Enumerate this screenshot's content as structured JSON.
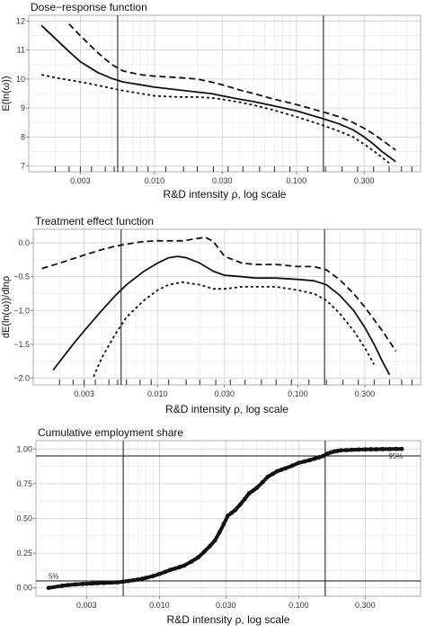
{
  "chart_data": [
    {
      "type": "line",
      "title": "Dose−response function",
      "xlabel": "R&D intensity ρ, log scale",
      "ylabel": "E(ln(ω))",
      "xscale": "log",
      "xlim": [
        0.0013,
        0.75
      ],
      "ylim": [
        6.8,
        12.2
      ],
      "xticks": [
        0.003,
        0.01,
        0.03,
        0.1,
        0.3
      ],
      "xtick_labels": [
        "0.003",
        "0.010",
        "0.030",
        "0.100",
        "0.300"
      ],
      "yticks": [
        7,
        8,
        9,
        10,
        11,
        12
      ],
      "ytick_labels": [
        "7",
        "8",
        "9",
        "10",
        "11",
        "12"
      ],
      "vlines": [
        0.0055,
        0.155
      ],
      "rug": true,
      "series": [
        {
          "style": "solid",
          "x": [
            0.0016,
            0.002,
            0.0025,
            0.003,
            0.004,
            0.005,
            0.006,
            0.008,
            0.01,
            0.015,
            0.02,
            0.025,
            0.03,
            0.04,
            0.05,
            0.07,
            0.1,
            0.15,
            0.2,
            0.25,
            0.3,
            0.35,
            0.4,
            0.5
          ],
          "y": [
            11.85,
            11.4,
            10.95,
            10.6,
            10.22,
            10.02,
            9.9,
            9.8,
            9.72,
            9.62,
            9.55,
            9.5,
            9.42,
            9.3,
            9.22,
            9.07,
            8.9,
            8.65,
            8.45,
            8.25,
            8.0,
            7.75,
            7.5,
            7.15
          ]
        },
        {
          "style": "dashed",
          "x": [
            0.0025,
            0.003,
            0.004,
            0.005,
            0.006,
            0.008,
            0.01,
            0.015,
            0.02,
            0.025,
            0.03,
            0.04,
            0.05,
            0.07,
            0.1,
            0.15,
            0.2,
            0.25,
            0.3,
            0.35,
            0.4,
            0.5
          ],
          "y": [
            11.9,
            11.5,
            10.9,
            10.5,
            10.28,
            10.15,
            10.1,
            10.05,
            10.0,
            9.9,
            9.8,
            9.62,
            9.5,
            9.3,
            9.12,
            8.88,
            8.7,
            8.5,
            8.3,
            8.1,
            7.9,
            7.55
          ]
        },
        {
          "style": "dotted",
          "x": [
            0.0016,
            0.002,
            0.003,
            0.004,
            0.005,
            0.006,
            0.008,
            0.01,
            0.015,
            0.02,
            0.025,
            0.03,
            0.04,
            0.05,
            0.07,
            0.1,
            0.15,
            0.2,
            0.25,
            0.3,
            0.35,
            0.4,
            0.45
          ],
          "y": [
            10.15,
            10.05,
            9.9,
            9.78,
            9.68,
            9.6,
            9.5,
            9.42,
            9.38,
            9.38,
            9.35,
            9.3,
            9.2,
            9.1,
            8.92,
            8.7,
            8.42,
            8.2,
            8.0,
            7.75,
            7.52,
            7.3,
            7.1
          ]
        }
      ]
    },
    {
      "type": "line",
      "title": "Treatment effect function",
      "xlabel": "R&D intensity ρ, log scale",
      "ylabel": "dE(ln(ω))/dlnρ",
      "xscale": "log",
      "xlim": [
        0.0013,
        0.75
      ],
      "ylim": [
        -2.1,
        0.2
      ],
      "xticks": [
        0.003,
        0.01,
        0.03,
        0.1,
        0.3
      ],
      "xtick_labels": [
        "0.003",
        "0.010",
        "0.030",
        "0.100",
        "0.300"
      ],
      "yticks": [
        0.0,
        -0.5,
        -1.0,
        -1.5,
        -2.0
      ],
      "ytick_labels": [
        "0.0",
        "−0.5",
        "−1.0",
        "−1.5",
        "−2.0"
      ],
      "vlines": [
        0.0055,
        0.155
      ],
      "rug": true,
      "series": [
        {
          "style": "solid",
          "x": [
            0.0018,
            0.0025,
            0.003,
            0.004,
            0.005,
            0.006,
            0.008,
            0.01,
            0.012,
            0.014,
            0.016,
            0.02,
            0.025,
            0.03,
            0.04,
            0.05,
            0.07,
            0.1,
            0.13,
            0.16,
            0.2,
            0.25,
            0.3,
            0.35,
            0.4,
            0.45
          ],
          "y": [
            -1.88,
            -1.5,
            -1.3,
            -1.0,
            -0.78,
            -0.62,
            -0.42,
            -0.3,
            -0.22,
            -0.2,
            -0.22,
            -0.3,
            -0.42,
            -0.48,
            -0.5,
            -0.52,
            -0.52,
            -0.54,
            -0.56,
            -0.62,
            -0.78,
            -1.0,
            -1.25,
            -1.5,
            -1.75,
            -1.95
          ]
        },
        {
          "style": "dashed",
          "x": [
            0.0015,
            0.002,
            0.003,
            0.004,
            0.005,
            0.006,
            0.008,
            0.01,
            0.015,
            0.02,
            0.022,
            0.025,
            0.03,
            0.04,
            0.05,
            0.07,
            0.1,
            0.13,
            0.16,
            0.2,
            0.25,
            0.3,
            0.4,
            0.5
          ],
          "y": [
            -0.38,
            -0.3,
            -0.18,
            -0.1,
            -0.05,
            -0.02,
            0.02,
            0.03,
            0.03,
            0.07,
            0.08,
            0.02,
            -0.2,
            -0.3,
            -0.32,
            -0.32,
            -0.35,
            -0.35,
            -0.4,
            -0.55,
            -0.75,
            -0.95,
            -1.3,
            -1.6
          ]
        },
        {
          "style": "dotted",
          "x": [
            0.0035,
            0.004,
            0.005,
            0.006,
            0.008,
            0.01,
            0.012,
            0.015,
            0.02,
            0.025,
            0.03,
            0.04,
            0.05,
            0.07,
            0.1,
            0.13,
            0.16,
            0.2,
            0.25,
            0.3,
            0.35
          ],
          "y": [
            -1.98,
            -1.7,
            -1.35,
            -1.1,
            -0.85,
            -0.7,
            -0.62,
            -0.58,
            -0.62,
            -0.68,
            -0.68,
            -0.65,
            -0.65,
            -0.65,
            -0.7,
            -0.75,
            -0.85,
            -1.05,
            -1.3,
            -1.55,
            -1.8
          ]
        }
      ]
    },
    {
      "type": "scatter",
      "title": "Cumulative employment share",
      "xlabel": "R&D intensity ρ, log scale",
      "xscale": "log",
      "xlim": [
        0.0013,
        0.75
      ],
      "ylim": [
        -0.06,
        1.06
      ],
      "xticks": [
        0.003,
        0.01,
        0.03,
        0.1,
        0.3
      ],
      "xtick_labels": [
        "0.003",
        "0.010",
        "0.030",
        "0.100",
        "0.300"
      ],
      "yticks": [
        0.0,
        0.25,
        0.5,
        0.75,
        1.0
      ],
      "ytick_labels": [
        "0.00",
        "0.25",
        "0.50",
        "0.75",
        "1.00"
      ],
      "vlines": [
        0.0055,
        0.155
      ],
      "hlines": [
        0.05,
        0.95
      ],
      "annotations": [
        {
          "text": "5%",
          "x": 0.0016,
          "y": 0.065
        },
        {
          "text": "95%",
          "x": 0.56,
          "y": 0.93
        }
      ],
      "series": [
        {
          "x": [
            0.0016,
            0.002,
            0.0022,
            0.0025,
            0.0028,
            0.003,
            0.0033,
            0.0036,
            0.004,
            0.0045,
            0.005,
            0.0055,
            0.006,
            0.0065,
            0.007,
            0.0075,
            0.008,
            0.009,
            0.01,
            0.011,
            0.012,
            0.013,
            0.014,
            0.015,
            0.017,
            0.019,
            0.021,
            0.023,
            0.025,
            0.027,
            0.029,
            0.031,
            0.033,
            0.035,
            0.038,
            0.041,
            0.044,
            0.047,
            0.05,
            0.055,
            0.06,
            0.065,
            0.07,
            0.075,
            0.08,
            0.09,
            0.1,
            0.11,
            0.12,
            0.13,
            0.14,
            0.15,
            0.16,
            0.17,
            0.18,
            0.19,
            0.2,
            0.22,
            0.24,
            0.27,
            0.3,
            0.33,
            0.36,
            0.4,
            0.45,
            0.5,
            0.55
          ],
          "y": [
            0.0,
            0.015,
            0.02,
            0.025,
            0.028,
            0.03,
            0.032,
            0.034,
            0.036,
            0.038,
            0.04,
            0.045,
            0.05,
            0.055,
            0.06,
            0.065,
            0.072,
            0.085,
            0.1,
            0.115,
            0.13,
            0.14,
            0.15,
            0.16,
            0.19,
            0.22,
            0.26,
            0.3,
            0.34,
            0.4,
            0.46,
            0.52,
            0.54,
            0.56,
            0.6,
            0.64,
            0.68,
            0.7,
            0.72,
            0.76,
            0.8,
            0.82,
            0.84,
            0.85,
            0.86,
            0.88,
            0.9,
            0.91,
            0.92,
            0.93,
            0.94,
            0.95,
            0.965,
            0.975,
            0.982,
            0.986,
            0.99,
            0.992,
            0.994,
            0.996,
            0.997,
            0.998,
            0.998,
            0.999,
            0.999,
            1.0,
            1.0
          ]
        }
      ]
    }
  ]
}
